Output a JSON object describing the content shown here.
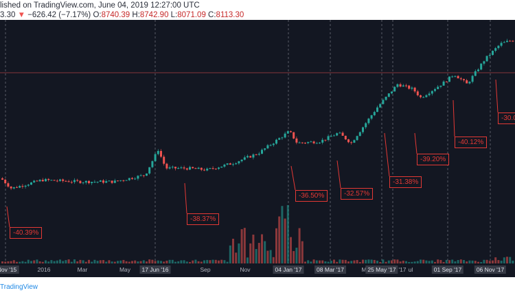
{
  "header": {
    "line1": "lished on TradingView.com, June 04, 2019 12:27:00 UTC",
    "close_partial": "3.30",
    "change_arrow": "▼",
    "change": "−626.42 (−7.17%)",
    "o_label": "O:",
    "o_value": "8740.39",
    "h_label": "H:",
    "h_value": "8742.90",
    "l_label": "L:",
    "l_value": "8071.09",
    "c_label": "C:",
    "c_value": "8113.30"
  },
  "footer": {
    "brand": "TradingView"
  },
  "x_axis": {
    "labels": [
      "Nov '15",
      "2016",
      "Mar",
      "May",
      "17 Jun '16",
      "Sep",
      "Nov",
      "04 Jan '17",
      "08 Mar '17",
      "M",
      "25 May '17",
      "'17",
      "ul",
      "01 Sep '17",
      "06 Nov '17"
    ]
  },
  "annotations": [
    "-40.39%",
    "-38.37%",
    "-36.50%",
    "-32.57%",
    "-31.38%",
    "-39.20%",
    "-40.12%",
    "-30.0"
  ],
  "colors": {
    "up": "#26a69a",
    "down": "#ef5350",
    "annotation": "#e53935",
    "background": "#131722"
  },
  "chart_data": {
    "type": "candlestick",
    "trend": [
      [
        0,
        0.18
      ],
      [
        0.02,
        0.12
      ],
      [
        0.08,
        0.17
      ],
      [
        0.15,
        0.16
      ],
      [
        0.22,
        0.16
      ],
      [
        0.28,
        0.2
      ],
      [
        0.305,
        0.35
      ],
      [
        0.32,
        0.24
      ],
      [
        0.36,
        0.24
      ],
      [
        0.4,
        0.23
      ],
      [
        0.45,
        0.27
      ],
      [
        0.5,
        0.33
      ],
      [
        0.56,
        0.46
      ],
      [
        0.575,
        0.39
      ],
      [
        0.62,
        0.4
      ],
      [
        0.655,
        0.45
      ],
      [
        0.68,
        0.39
      ],
      [
        0.73,
        0.6
      ],
      [
        0.77,
        0.74
      ],
      [
        0.8,
        0.71
      ],
      [
        0.815,
        0.66
      ],
      [
        0.86,
        0.75
      ],
      [
        0.88,
        0.8
      ],
      [
        0.905,
        0.74
      ],
      [
        0.94,
        0.89
      ],
      [
        0.97,
        0.98
      ],
      [
        0.99,
        1.0
      ]
    ]
  }
}
